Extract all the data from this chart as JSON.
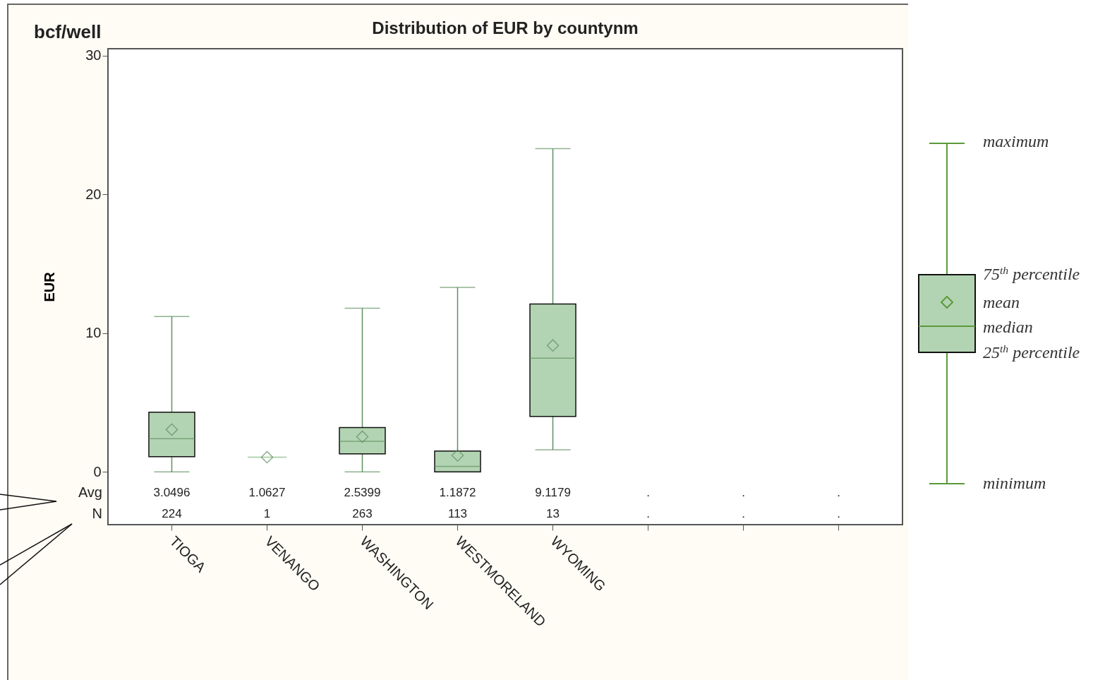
{
  "chart_data": {
    "type": "box",
    "title": "Distribution of EUR by countynm",
    "ylabel": "EUR",
    "categories": [
      "TIOGA",
      "VENANGO",
      "WASHINGTON",
      "WESTMORELAND",
      "WYOMING",
      null,
      null,
      null
    ],
    "boxes": [
      {
        "low": 0,
        "q1": 1.1,
        "median": 2.4,
        "q3": 4.3,
        "high": 11.2,
        "mean": 3.0496
      },
      {
        "low": 1.0627,
        "q1": 1.0627,
        "median": 1.0627,
        "q3": 1.0627,
        "high": 1.0627,
        "mean": 1.0627
      },
      {
        "low": 0,
        "q1": 1.3,
        "median": 2.2,
        "q3": 3.2,
        "high": 11.8,
        "mean": 2.5399
      },
      {
        "low": 0,
        "q1": 0,
        "median": 0.4,
        "q3": 1.5,
        "high": 13.3,
        "mean": 1.1872
      },
      {
        "low": 1.6,
        "q1": 4.0,
        "median": 8.2,
        "q3": 12.1,
        "high": 23.3,
        "mean": 9.1179
      },
      null,
      null,
      null
    ],
    "color": "#b3d4b3",
    "ylim": [
      -3.8,
      30.5
    ],
    "yticks": [
      0,
      10,
      20,
      30
    ],
    "annotations": [
      "bcf/well",
      "Avg",
      "N",
      "maximum",
      "75$^{th}$ percentile",
      "mean",
      "median",
      "25$^{th}$ percentile",
      "minimum",
      "3.0496",
      "1.0627",
      "2.5399",
      "1.1872",
      "9.1179",
      ".",
      ".",
      ".",
      "224",
      "1",
      "263",
      "113",
      "13",
      ".",
      ".",
      "."
    ]
  }
}
